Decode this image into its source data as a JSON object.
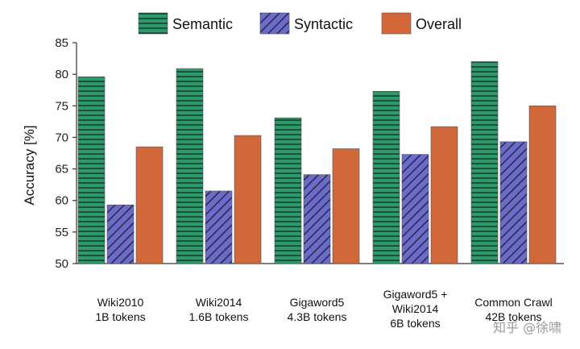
{
  "chart_data": {
    "type": "bar",
    "title": "",
    "xlabel": "",
    "ylabel": "Accuracy [%]",
    "ylim": [
      50,
      85
    ],
    "yticks": [
      50,
      55,
      60,
      65,
      70,
      75,
      80,
      85
    ],
    "grid": false,
    "legend_position": "top",
    "categories": [
      [
        "Wiki2010",
        "1B tokens"
      ],
      [
        "Wiki2014",
        "1.6B tokens"
      ],
      [
        "Gigaword5",
        "4.3B tokens"
      ],
      [
        "Gigaword5 +",
        "Wiki2014",
        "6B tokens"
      ],
      [
        "Common Crawl",
        "42B tokens"
      ]
    ],
    "series": [
      {
        "name": "Semantic",
        "color": "#2e9a6c",
        "pattern": "horizontal-stripes",
        "values": [
          79.6,
          80.9,
          73.1,
          77.3,
          82.0
        ]
      },
      {
        "name": "Syntactic",
        "color": "#6b6bc8",
        "pattern": "diagonal-hatch",
        "values": [
          59.3,
          61.5,
          64.1,
          67.3,
          69.3
        ]
      },
      {
        "name": "Overall",
        "color": "#d2683a",
        "pattern": "solid",
        "values": [
          68.5,
          70.3,
          68.2,
          71.7,
          75.0
        ]
      }
    ]
  },
  "watermark": "知乎 @徐啸"
}
